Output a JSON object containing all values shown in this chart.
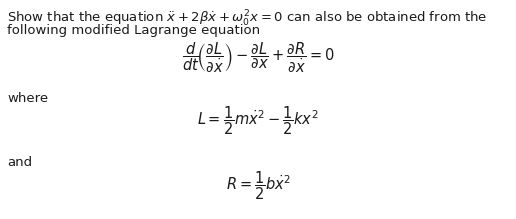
{
  "background_color": "#ffffff",
  "text_color": "#1a1a1a",
  "fig_width": 5.16,
  "fig_height": 2.19,
  "dpi": 100,
  "line1": "Show that the equation $\\ddot{x} + 2\\beta\\dot{x} + \\omega_0^2 x = 0$ can also be obtained from the",
  "line2": "following modified Lagrange equation",
  "lagrange_eq": "$\\dfrac{d}{dt}\\!\\left(\\dfrac{\\partial L}{\\partial \\dot{x}}\\right) - \\dfrac{\\partial L}{\\partial x} + \\dfrac{\\partial R}{\\partial \\dot{x}} = 0$",
  "where_text": "where",
  "L_eq": "$L = \\dfrac{1}{2}m\\dot{x}^2 - \\dfrac{1}{2}kx^2$",
  "and_text": "and",
  "R_eq": "$R = \\dfrac{1}{2}b\\dot{x}^2$",
  "font_size_body": 9.5,
  "font_size_eq": 10.5
}
